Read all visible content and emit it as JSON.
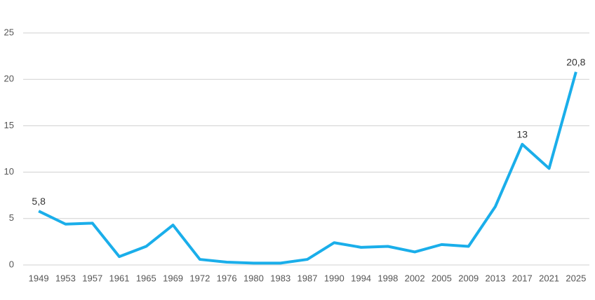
{
  "chart_data": {
    "type": "line",
    "categories": [
      "1949",
      "1953",
      "1957",
      "1961",
      "1965",
      "1969",
      "1972",
      "1976",
      "1980",
      "1983",
      "1987",
      "1990",
      "1994",
      "1998",
      "2002",
      "2005",
      "2009",
      "2013",
      "2017",
      "2021",
      "2025"
    ],
    "series": [
      {
        "color": "#1aaeea",
        "values": [
          5.8,
          4.4,
          4.5,
          0.9,
          2.0,
          4.3,
          0.6,
          0.3,
          0.2,
          0.2,
          0.6,
          2.4,
          1.9,
          2.0,
          1.4,
          2.2,
          2.0,
          6.3,
          13,
          10.4,
          20.8
        ],
        "value_labels": [
          "5,8",
          null,
          null,
          null,
          null,
          null,
          null,
          null,
          null,
          null,
          null,
          null,
          null,
          null,
          null,
          null,
          null,
          null,
          "13",
          null,
          "20,8"
        ]
      }
    ],
    "ylim": [
      0,
      25
    ],
    "yticks": [
      0,
      5,
      10,
      15,
      20,
      25
    ],
    "grid": true
  }
}
